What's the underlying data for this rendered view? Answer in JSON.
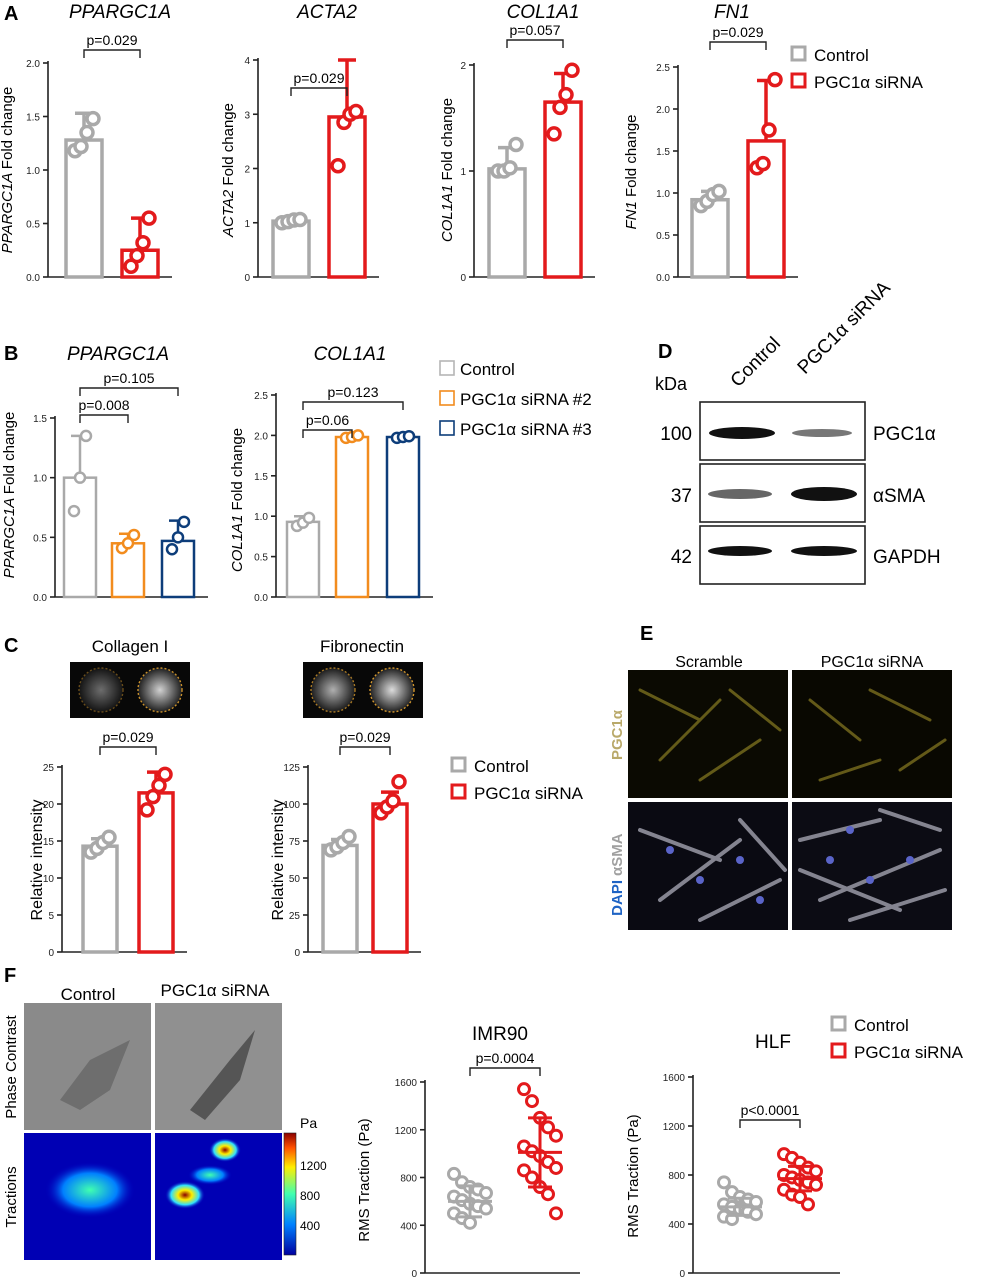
{
  "colors": {
    "control": "#a9a9a9",
    "sirna": "#e31a1c",
    "sirna2": "#f28c1e",
    "sirna3": "#0d3d7a",
    "blue_text": "#1e63c4",
    "gold_text": "#b9a96a"
  },
  "panel_letters": {
    "A": "A",
    "B": "B",
    "C": "C",
    "D": "D",
    "E": "E",
    "F": "F"
  },
  "legends": {
    "a": [
      "Control",
      "PGC1α siRNA"
    ],
    "b": [
      "Control",
      "PGC1α siRNA #2",
      "PGC1α siRNA #3"
    ],
    "c": [
      "Control",
      "PGC1α siRNA"
    ],
    "f": [
      "Control",
      "PGC1α siRNA"
    ]
  },
  "panel_d": {
    "col_labels": [
      "Control",
      "PGC1α siRNA"
    ],
    "kda": "kDa",
    "rows": [
      {
        "mw": "100",
        "label": "PGC1α"
      },
      {
        "mw": "37",
        "label": "αSMA"
      },
      {
        "mw": "42",
        "label": "GAPDH"
      }
    ]
  },
  "panel_e": {
    "col_labels": [
      "Scramble",
      "PGC1α siRNA"
    ],
    "row1_label": "PGC1α",
    "row2_label_a": "DAPI",
    "row2_label_b": "αSMA"
  },
  "panel_c_images": [
    "Collagen I",
    "Fibronectin"
  ],
  "panel_f_images": {
    "col_labels": [
      "Control",
      "PGC1α siRNA"
    ],
    "row_labels": [
      "Phase Contrast",
      "Tractions"
    ],
    "colorbar_unit": "Pa",
    "colorbar_ticks": [
      "1200",
      "800",
      "400"
    ]
  },
  "chart_data": [
    {
      "id": "a1",
      "type": "bar",
      "title": "PPARGC1A",
      "ylabel_it": "PPARGC1A",
      "ylabel": "Fold change",
      "categories": [
        "Control",
        "PGC1α siRNA"
      ],
      "values": [
        1.28,
        0.25
      ],
      "err": [
        0.25,
        0.3
      ],
      "points": [
        [
          1.18,
          1.22,
          1.35,
          1.48
        ],
        [
          0.1,
          0.2,
          0.32,
          0.55
        ]
      ],
      "ylim": [
        0,
        2
      ],
      "yticks": [
        "0.0",
        "0.5",
        "1.0",
        "1.5",
        "2.0"
      ],
      "pvalues": [
        {
          "text": "p=0.029"
        }
      ]
    },
    {
      "id": "a2",
      "type": "bar",
      "title": "ACTA2",
      "ylabel_it": "ACTA2",
      "ylabel": "Fold change",
      "categories": [
        "Control",
        "PGC1α siRNA"
      ],
      "values": [
        1.03,
        2.95
      ],
      "err": [
        0.05,
        1.05
      ],
      "points": [
        [
          1.0,
          1.02,
          1.05,
          1.06
        ],
        [
          2.05,
          2.85,
          3.0,
          3.05
        ]
      ],
      "ylim": [
        0,
        4
      ],
      "yticks": [
        "0",
        "1",
        "2",
        "3",
        "4"
      ],
      "pvalues": [
        {
          "text": "p=0.029"
        }
      ]
    },
    {
      "id": "a3",
      "type": "bar",
      "title": "COL1A1",
      "ylabel_it": "COL1A1",
      "ylabel": "Fold change",
      "categories": [
        "Control",
        "PGC1α siRNA"
      ],
      "values": [
        1.02,
        1.65
      ],
      "err": [
        0.2,
        0.27
      ],
      "points": [
        [
          1.0,
          1.0,
          1.03,
          1.25
        ],
        [
          1.35,
          1.6,
          1.72,
          1.95
        ]
      ],
      "ylim": [
        0,
        2
      ],
      "yticks": [
        "0",
        "1",
        "2"
      ],
      "pvalues": [
        {
          "text": "p=0.057"
        }
      ]
    },
    {
      "id": "a4",
      "type": "bar",
      "title": "FN1",
      "ylabel_it": "FN1",
      "ylabel": "Fold change",
      "categories": [
        "Control",
        "PGC1α siRNA"
      ],
      "values": [
        0.92,
        1.62
      ],
      "err": [
        0.1,
        0.72
      ],
      "points": [
        [
          0.85,
          0.9,
          0.98,
          1.02
        ],
        [
          1.3,
          1.35,
          1.75,
          2.35
        ]
      ],
      "ylim": [
        0,
        2.5
      ],
      "yticks": [
        "0.0",
        "0.5",
        "1.0",
        "1.5",
        "2.0",
        "2.5"
      ],
      "pvalues": [
        {
          "text": "p=0.029"
        }
      ]
    },
    {
      "id": "b1",
      "type": "bar",
      "title": "PPARGC1A",
      "ylabel_it": "PPARGC1A",
      "ylabel": "Fold change",
      "categories": [
        "Control",
        "PGC1α siRNA #2",
        "PGC1α siRNA #3"
      ],
      "values": [
        1.0,
        0.45,
        0.47
      ],
      "err": [
        0.35,
        0.08,
        0.17
      ],
      "points": [
        [
          0.72,
          1.0,
          1.35
        ],
        [
          0.41,
          0.45,
          0.52
        ],
        [
          0.4,
          0.5,
          0.63
        ]
      ],
      "ylim": [
        0,
        1.5
      ],
      "yticks": [
        "0.0",
        "0.5",
        "1.0",
        "1.5"
      ],
      "pvalues": [
        {
          "text": "p=0.008"
        },
        {
          "text": "p=0.105"
        }
      ]
    },
    {
      "id": "b2",
      "type": "bar",
      "title": "COL1A1",
      "ylabel_it": "COL1A1",
      "ylabel": "Fold change",
      "categories": [
        "Control",
        "PGC1α siRNA #2",
        "PGC1α siRNA #3"
      ],
      "values": [
        0.93,
        1.98,
        1.98
      ],
      "err": [
        0.07,
        0.02,
        0.02
      ],
      "points": [
        [
          0.88,
          0.92,
          0.98
        ],
        [
          1.97,
          1.98,
          2.0
        ],
        [
          1.97,
          1.98,
          1.99
        ]
      ],
      "ylim": [
        0,
        2.5
      ],
      "yticks": [
        "0.0",
        "0.5",
        "1.0",
        "1.5",
        "2.0",
        "2.5"
      ],
      "pvalues": [
        {
          "text": "p=0.06"
        },
        {
          "text": "p=0.123"
        }
      ]
    },
    {
      "id": "c1",
      "type": "bar",
      "title": "",
      "ylabel": "Relative intensity",
      "categories": [
        "Control",
        "PGC1α siRNA"
      ],
      "values": [
        14.3,
        21.5
      ],
      "err": [
        1.0,
        2.8
      ],
      "points": [
        [
          13.5,
          14.0,
          14.8,
          15.5
        ],
        [
          19.2,
          21.0,
          22.5,
          24.0
        ]
      ],
      "ylim": [
        0,
        25
      ],
      "yticks": [
        "0",
        "5",
        "10",
        "15",
        "20",
        "25"
      ],
      "pvalues": [
        {
          "text": "p=0.029"
        }
      ]
    },
    {
      "id": "c2",
      "type": "bar",
      "title": "",
      "ylabel": "Relative intensity",
      "categories": [
        "Control",
        "PGC1α siRNA"
      ],
      "values": [
        72,
        100
      ],
      "err": [
        4,
        8
      ],
      "points": [
        [
          69,
          71,
          74,
          78
        ],
        [
          94,
          98,
          102,
          115
        ]
      ],
      "ylim": [
        0,
        125
      ],
      "yticks": [
        "0",
        "25",
        "50",
        "75",
        "100",
        "125"
      ],
      "pvalues": [
        {
          "text": "p=0.029"
        }
      ]
    },
    {
      "id": "f1",
      "type": "scatter",
      "title": "IMR90",
      "ylabel": "RMS Traction (Pa)",
      "categories": [
        "Control",
        "PGC1α siRNA"
      ],
      "means": [
        600,
        1010
      ],
      "sd": [
        130,
        290
      ],
      "points": [
        [
          830,
          760,
          720,
          700,
          670,
          640,
          610,
          580,
          560,
          540,
          500,
          460,
          420
        ],
        [
          1540,
          1440,
          1300,
          1220,
          1150,
          1060,
          1020,
          980,
          930,
          880,
          860,
          800,
          720,
          660,
          500
        ]
      ],
      "ylim": [
        0,
        1600
      ],
      "yticks": [
        "0",
        "400",
        "800",
        "1200",
        "1600"
      ],
      "pvalues": [
        {
          "text": "p=0.0004"
        }
      ]
    },
    {
      "id": "f2",
      "type": "scatter",
      "title": "HLF",
      "ylabel": "RMS Traction (Pa)",
      "categories": [
        "Control",
        "PGC1α siRNA"
      ],
      "means": [
        540,
        770
      ],
      "sd": [
        70,
        100
      ],
      "points": [
        [
          740,
          660,
          620,
          600,
          580,
          560,
          540,
          520,
          500,
          480,
          460,
          440
        ],
        [
          970,
          940,
          900,
          860,
          830,
          800,
          780,
          760,
          740,
          720,
          680,
          640,
          620,
          560
        ]
      ],
      "ylim": [
        0,
        1600
      ],
      "yticks": [
        "0",
        "400",
        "800",
        "1200",
        "1600"
      ],
      "pvalues": [
        {
          "text": "p<0.0001"
        }
      ]
    }
  ]
}
